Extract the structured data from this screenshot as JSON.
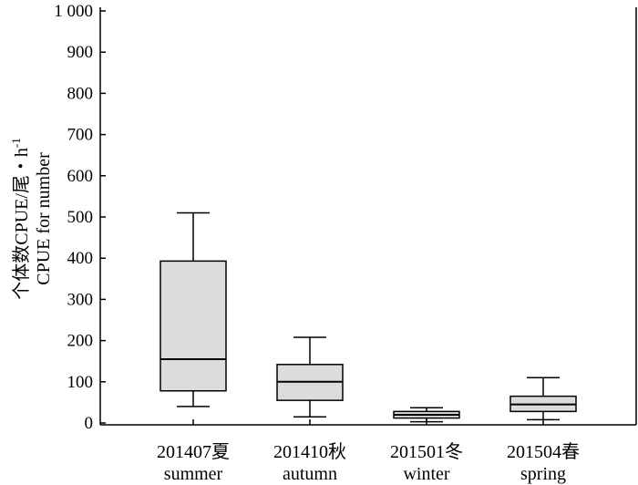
{
  "chart_data": {
    "type": "boxplot",
    "title": "",
    "ylabel_cn": "个体数CPUE/尾・h",
    "ylabel_sup": "-1",
    "ylabel_en": "CPUE for number",
    "ylim": [
      0,
      1000
    ],
    "yticks": [
      0,
      100,
      200,
      300,
      400,
      500,
      600,
      700,
      800,
      900,
      1000
    ],
    "ytick_labels": [
      "0",
      "100",
      "200",
      "300",
      "400",
      "500",
      "600",
      "700",
      "800",
      "900",
      "1 000"
    ],
    "grid": false,
    "categories": [
      {
        "label_cn": "201407夏",
        "label_en": "summer",
        "whisker_low": 40,
        "q1": 78,
        "median": 155,
        "q3": 393,
        "whisker_high": 510
      },
      {
        "label_cn": "201410秋",
        "label_en": "autumn",
        "whisker_low": 15,
        "q1": 55,
        "median": 100,
        "q3": 142,
        "whisker_high": 208
      },
      {
        "label_cn": "201501冬",
        "label_en": "winter",
        "whisker_low": 3,
        "q1": 12,
        "median": 20,
        "q3": 28,
        "whisker_high": 37
      },
      {
        "label_cn": "201504春",
        "label_en": "spring",
        "whisker_low": 8,
        "q1": 28,
        "median": 45,
        "q3": 65,
        "whisker_high": 110
      }
    ]
  }
}
